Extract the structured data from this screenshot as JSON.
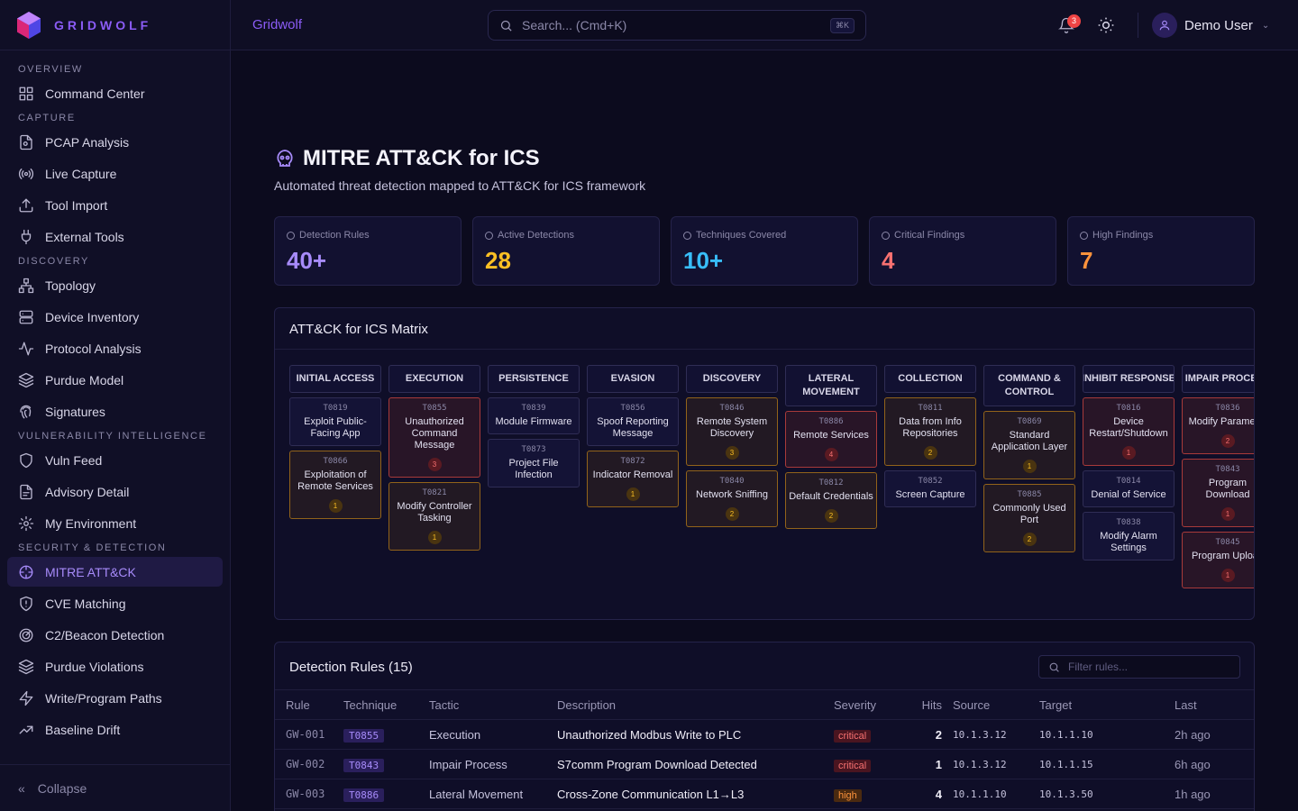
{
  "brand": {
    "name": "GRIDWOLF"
  },
  "sidebar": {
    "sections": [
      {
        "title": "OVERVIEW",
        "items": [
          {
            "label": "Command Center",
            "icon": "dashboard-icon"
          }
        ]
      },
      {
        "title": "CAPTURE",
        "items": [
          {
            "label": "PCAP Analysis",
            "icon": "file-search-icon"
          },
          {
            "label": "Live Capture",
            "icon": "radio-icon"
          },
          {
            "label": "Tool Import",
            "icon": "upload-icon"
          },
          {
            "label": "External Tools",
            "icon": "plug-icon"
          }
        ]
      },
      {
        "title": "DISCOVERY",
        "items": [
          {
            "label": "Topology",
            "icon": "network-icon"
          },
          {
            "label": "Device Inventory",
            "icon": "server-icon"
          },
          {
            "label": "Protocol Analysis",
            "icon": "activity-icon"
          },
          {
            "label": "Purdue Model",
            "icon": "layers-icon"
          },
          {
            "label": "Signatures",
            "icon": "fingerprint-icon"
          }
        ]
      },
      {
        "title": "VULNERABILITY INTELLIGENCE",
        "items": [
          {
            "label": "Vuln Feed",
            "icon": "shield-icon"
          },
          {
            "label": "Advisory Detail",
            "icon": "file-icon"
          },
          {
            "label": "My Environment",
            "icon": "gear-icon"
          }
        ]
      },
      {
        "title": "SECURITY & DETECTION",
        "items": [
          {
            "label": "MITRE ATT&CK",
            "icon": "crosshair-icon",
            "active": true
          },
          {
            "label": "CVE Matching",
            "icon": "shield-alert-icon"
          },
          {
            "label": "C2/Beacon Detection",
            "icon": "radar-icon"
          },
          {
            "label": "Purdue Violations",
            "icon": "layers-icon"
          },
          {
            "label": "Write/Program Paths",
            "icon": "bolt-icon"
          },
          {
            "label": "Baseline Drift",
            "icon": "trend-icon"
          }
        ]
      }
    ],
    "collapse_label": "Collapse"
  },
  "header": {
    "title": "Gridwolf",
    "search_placeholder": "Search... (Cmd+K)",
    "search_shortcut": "⌘K",
    "notification_count": "3",
    "user_name": "Demo User"
  },
  "page": {
    "title": "MITRE ATT&CK for ICS",
    "subtitle": "Automated threat detection mapped to ATT&CK for ICS framework"
  },
  "stats": [
    {
      "label": "Detection Rules",
      "value": "40+",
      "color": "#a78bfa"
    },
    {
      "label": "Active Detections",
      "value": "28",
      "color": "#fbbf24"
    },
    {
      "label": "Techniques Covered",
      "value": "10+",
      "color": "#38bdf8"
    },
    {
      "label": "Critical Findings",
      "value": "4",
      "color": "#f87171"
    },
    {
      "label": "High Findings",
      "value": "7",
      "color": "#fb923c"
    }
  ],
  "matrix": {
    "title": "ATT&CK for ICS Matrix",
    "tactics": [
      {
        "name": "INITIAL ACCESS",
        "techniques": [
          {
            "id": "T0819",
            "name": "Exploit Public-Facing App"
          },
          {
            "id": "T0866",
            "name": "Exploitation of Remote Services",
            "hits": "1",
            "severity": "high"
          }
        ]
      },
      {
        "name": "EXECUTION",
        "techniques": [
          {
            "id": "T0855",
            "name": "Unauthorized Command Message",
            "hits": "3",
            "severity": "crit"
          },
          {
            "id": "T0821",
            "name": "Modify Controller Tasking",
            "hits": "1",
            "severity": "high"
          }
        ]
      },
      {
        "name": "PERSISTENCE",
        "techniques": [
          {
            "id": "T0839",
            "name": "Module Firmware"
          },
          {
            "id": "T0873",
            "name": "Project File Infection"
          }
        ]
      },
      {
        "name": "EVASION",
        "techniques": [
          {
            "id": "T0856",
            "name": "Spoof Reporting Message"
          },
          {
            "id": "T0872",
            "name": "Indicator Removal",
            "hits": "1",
            "severity": "high"
          }
        ]
      },
      {
        "name": "DISCOVERY",
        "techniques": [
          {
            "id": "T0846",
            "name": "Remote System Discovery",
            "hits": "3",
            "severity": "high"
          },
          {
            "id": "T0840",
            "name": "Network Sniffing",
            "hits": "2",
            "severity": "high"
          }
        ]
      },
      {
        "name": "LATERAL MOVEMENT",
        "techniques": [
          {
            "id": "T0886",
            "name": "Remote Services",
            "hits": "4",
            "severity": "crit"
          },
          {
            "id": "T0812",
            "name": "Default Credentials",
            "hits": "2",
            "severity": "high"
          }
        ]
      },
      {
        "name": "COLLECTION",
        "techniques": [
          {
            "id": "T0811",
            "name": "Data from Info Repositories",
            "hits": "2",
            "severity": "high"
          },
          {
            "id": "T0852",
            "name": "Screen Capture"
          }
        ]
      },
      {
        "name": "COMMAND & CONTROL",
        "techniques": [
          {
            "id": "T0869",
            "name": "Standard Application Layer",
            "hits": "1",
            "severity": "high"
          },
          {
            "id": "T0885",
            "name": "Commonly Used Port",
            "hits": "2",
            "severity": "high"
          }
        ]
      },
      {
        "name": "INHIBIT RESPONSE",
        "techniques": [
          {
            "id": "T0816",
            "name": "Device Restart/Shutdown",
            "hits": "1",
            "severity": "crit"
          },
          {
            "id": "T0814",
            "name": "Denial of Service"
          },
          {
            "id": "T0838",
            "name": "Modify Alarm Settings"
          }
        ]
      },
      {
        "name": "IMPAIR PROCESS",
        "techniques": [
          {
            "id": "T0836",
            "name": "Modify Parameter",
            "hits": "2",
            "severity": "crit"
          },
          {
            "id": "T0843",
            "name": "Program Download",
            "hits": "1",
            "severity": "crit"
          },
          {
            "id": "T0845",
            "name": "Program Upload",
            "hits": "1",
            "severity": "crit"
          }
        ]
      }
    ]
  },
  "rules": {
    "title": "Detection Rules (15)",
    "filter_placeholder": "Filter rules...",
    "columns": [
      "Rule",
      "Technique",
      "Tactic",
      "Description",
      "Severity",
      "Hits",
      "Source",
      "Target",
      "Last"
    ],
    "rows": [
      {
        "rule": "GW-001",
        "technique": "T0855",
        "tactic": "Execution",
        "description": "Unauthorized Modbus Write to PLC",
        "severity": "critical",
        "hits": "2",
        "source": "10.1.3.12",
        "target": "10.1.1.10",
        "last": "2h ago"
      },
      {
        "rule": "GW-002",
        "technique": "T0843",
        "tactic": "Impair Process",
        "description": "S7comm Program Download Detected",
        "severity": "critical",
        "hits": "1",
        "source": "10.1.3.12",
        "target": "10.1.1.15",
        "last": "6h ago"
      },
      {
        "rule": "GW-003",
        "technique": "T0886",
        "tactic": "Lateral Movement",
        "description": "Cross-Zone Communication L1→L3",
        "severity": "high",
        "hits": "4",
        "source": "10.1.1.10",
        "target": "10.1.3.50",
        "last": "1h ago"
      }
    ]
  }
}
